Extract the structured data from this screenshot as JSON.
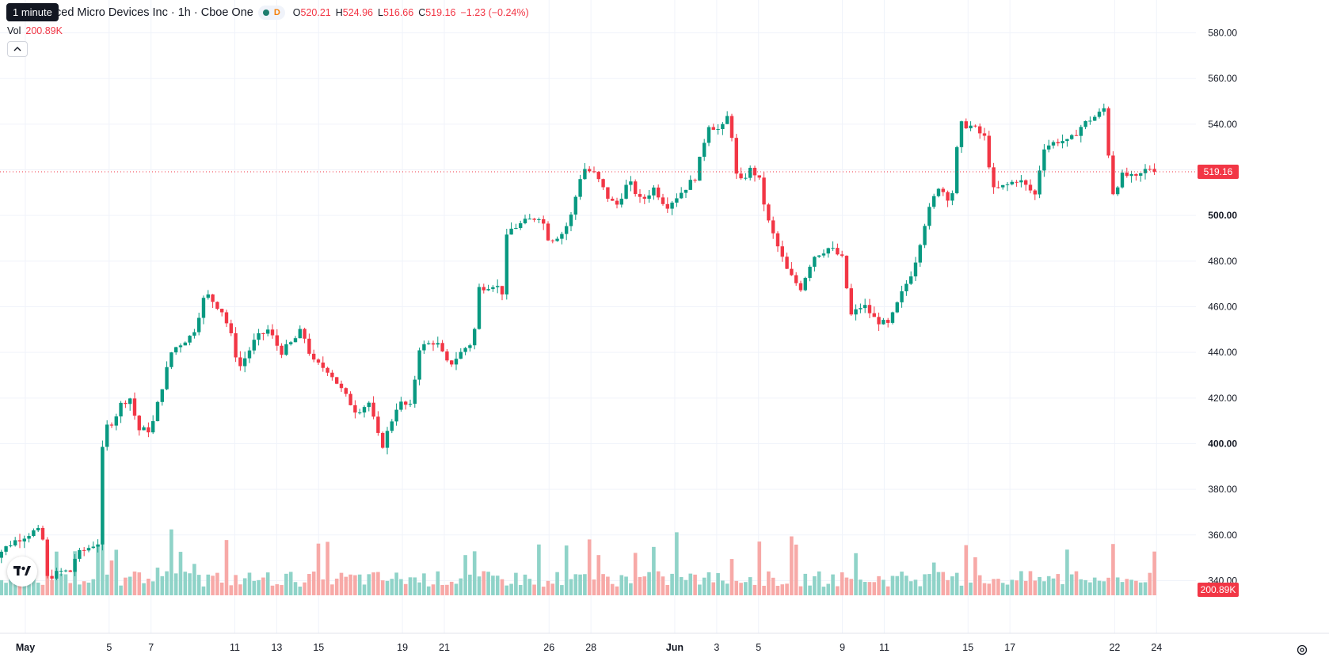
{
  "tooltip": "1 minute",
  "header": {
    "title": "ced Micro Devices Inc · 1h · Cboe One",
    "d_badge": "D",
    "open_label": "O",
    "open": "520.21",
    "high_label": "H",
    "high": "524.96",
    "low_label": "L",
    "low": "516.66",
    "close_label": "C",
    "close": "519.16",
    "change": "−1.23 (−0.24%)"
  },
  "volume": {
    "label": "Vol",
    "value": "200.89K"
  },
  "icons": {
    "collapse": "chevron-up-icon",
    "logo": "tradingview-logo-icon",
    "settings": "settings-icon",
    "status": "market-status-icon"
  },
  "colors": {
    "up": "#089981",
    "down": "#f23645",
    "up_volume": "#8fd3c8",
    "down_volume": "#f7a9a7",
    "grid": "#f0f3fa",
    "text": "#131722"
  },
  "chart_data": {
    "type": "candlestick",
    "symbol": "Advanced Micro Devices Inc",
    "interval": "1h",
    "exchange": "Cboe One",
    "y_ticks": [
      "580.00",
      "560.00",
      "540.00",
      "520.00",
      "500.00",
      "480.00",
      "460.00",
      "440.00",
      "420.00",
      "400.00",
      "380.00",
      "360.00",
      "340.00"
    ],
    "y_tick_values": [
      580,
      560,
      540,
      520,
      500,
      480,
      460,
      440,
      420,
      400,
      380,
      360,
      340
    ],
    "bold_ticks": [
      "500.00",
      "400.00"
    ],
    "ylim": [
      336,
      584
    ],
    "x_ticks": [
      {
        "label": "May",
        "day": 1,
        "bold": true
      },
      {
        "label": "5",
        "day": 5
      },
      {
        "label": "7",
        "day": 7
      },
      {
        "label": "11",
        "day": 11
      },
      {
        "label": "13",
        "day": 13
      },
      {
        "label": "15",
        "day": 15
      },
      {
        "label": "19",
        "day": 19
      },
      {
        "label": "21",
        "day": 21
      },
      {
        "label": "26",
        "day": 26
      },
      {
        "label": "28",
        "day": 28
      },
      {
        "label": "Jun",
        "day": 32,
        "bold": true
      },
      {
        "label": "3",
        "day": 34
      },
      {
        "label": "5",
        "day": 36
      },
      {
        "label": "9",
        "day": 40
      },
      {
        "label": "11",
        "day": 42
      },
      {
        "label": "15",
        "day": 46
      },
      {
        "label": "17",
        "day": 48
      },
      {
        "label": "22",
        "day": 53
      },
      {
        "label": "24",
        "day": 55
      }
    ],
    "last_price": 519.16,
    "last_price_label": "519.16",
    "volume_label": "200.89K",
    "price_path": [
      [
        -0.8,
        348
      ],
      [
        0.4,
        357
      ],
      [
        1.5,
        362
      ],
      [
        1.8,
        361
      ],
      [
        2,
        341
      ],
      [
        2.7,
        344
      ],
      [
        3.2,
        344
      ],
      [
        3.4,
        351
      ],
      [
        4.3,
        356
      ],
      [
        4.6,
        357
      ],
      [
        4.7,
        406
      ],
      [
        5.2,
        410
      ],
      [
        5.6,
        418
      ],
      [
        6.0,
        420
      ],
      [
        6.4,
        406
      ],
      [
        7.0,
        406
      ],
      [
        7.5,
        424
      ],
      [
        8.0,
        441
      ],
      [
        9.0,
        448
      ],
      [
        9.6,
        466
      ],
      [
        10.4,
        458
      ],
      [
        10.8,
        448
      ],
      [
        11.2,
        433
      ],
      [
        12.0,
        446
      ],
      [
        12.6,
        450
      ],
      [
        13.2,
        440
      ],
      [
        13.8,
        445
      ],
      [
        14.2,
        450
      ],
      [
        14.7,
        436
      ],
      [
        15.5,
        432
      ],
      [
        16.2,
        422
      ],
      [
        16.8,
        414
      ],
      [
        17.4,
        418
      ],
      [
        18.0,
        398
      ],
      [
        18.8,
        418
      ],
      [
        19.4,
        416
      ],
      [
        19.8,
        442
      ],
      [
        20.6,
        445
      ],
      [
        21.2,
        434
      ],
      [
        22.0,
        442
      ],
      [
        22.4,
        445
      ],
      [
        22.6,
        468
      ],
      [
        23.4,
        470
      ],
      [
        23.8,
        466
      ],
      [
        24.0,
        493
      ],
      [
        24.8,
        497
      ],
      [
        25.6,
        500
      ],
      [
        26.0,
        489
      ],
      [
        26.6,
        492
      ],
      [
        27.0,
        498
      ],
      [
        27.6,
        521
      ],
      [
        28.2,
        518
      ],
      [
        28.8,
        508
      ],
      [
        29.2,
        504
      ],
      [
        29.8,
        515
      ],
      [
        30.4,
        506
      ],
      [
        31.0,
        512
      ],
      [
        31.6,
        504
      ],
      [
        32.4,
        511
      ],
      [
        33.0,
        517
      ],
      [
        33.6,
        540
      ],
      [
        34.2,
        537
      ],
      [
        34.6,
        545
      ],
      [
        35.0,
        513
      ],
      [
        35.6,
        520
      ],
      [
        36.0,
        517
      ],
      [
        36.4,
        499
      ],
      [
        36.8,
        489
      ],
      [
        37.4,
        475
      ],
      [
        38.0,
        468
      ],
      [
        38.6,
        482
      ],
      [
        39.4,
        486
      ],
      [
        40.0,
        481
      ],
      [
        40.4,
        456
      ],
      [
        41.0,
        461
      ],
      [
        41.6,
        454
      ],
      [
        42.2,
        452
      ],
      [
        42.8,
        465
      ],
      [
        43.4,
        477
      ],
      [
        44.0,
        499
      ],
      [
        44.6,
        513
      ],
      [
        45.2,
        506
      ],
      [
        45.6,
        540
      ],
      [
        46.2,
        539
      ],
      [
        46.8,
        534
      ],
      [
        47.2,
        511
      ],
      [
        47.8,
        513
      ],
      [
        48.4,
        516
      ],
      [
        49.2,
        509
      ],
      [
        49.6,
        530
      ],
      [
        50.4,
        533
      ],
      [
        50.8,
        532
      ],
      [
        51.4,
        539
      ],
      [
        51.8,
        542
      ],
      [
        52.2,
        544
      ],
      [
        52.6,
        548
      ],
      [
        52.8,
        508
      ],
      [
        53.4,
        518
      ],
      [
        54.0,
        516
      ],
      [
        54.6,
        521
      ],
      [
        55.0,
        519.16
      ]
    ],
    "volume_max": 210000,
    "volume_highlights": [
      {
        "day": 4.7,
        "value": 205000,
        "down": true
      },
      {
        "day": 8.0,
        "value": 92000,
        "down": false
      },
      {
        "day": 28.0,
        "value": 78000,
        "down": true
      },
      {
        "day": 32.0,
        "value": 88000,
        "down": false
      },
      {
        "day": 36.0,
        "value": 75000,
        "down": true
      },
      {
        "day": 45.8,
        "value": 70000,
        "down": false
      }
    ]
  }
}
